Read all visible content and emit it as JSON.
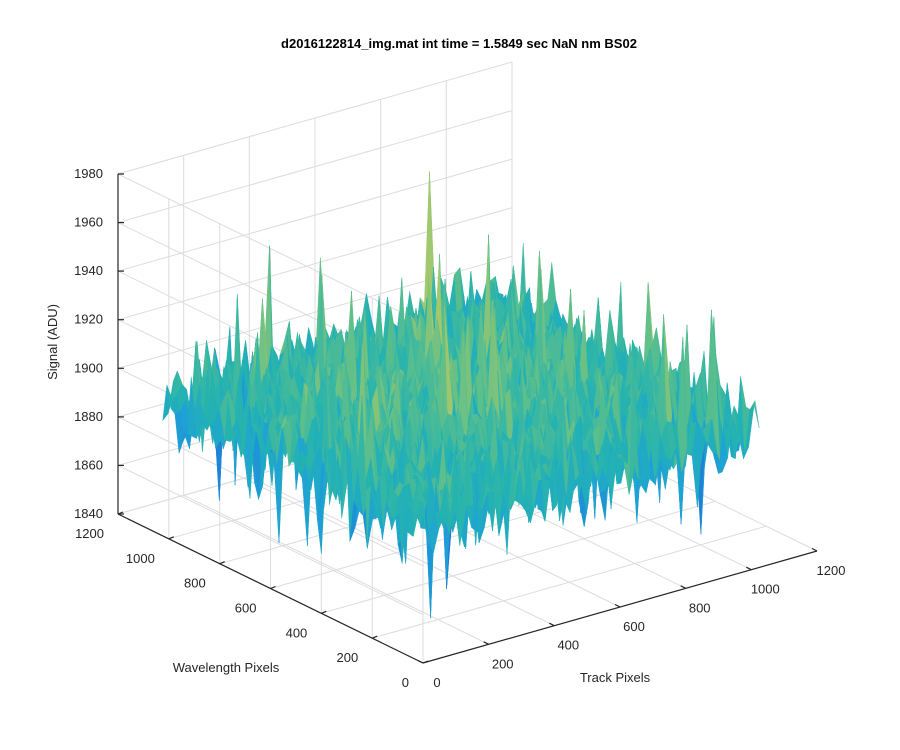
{
  "chart_data": {
    "type": "surface",
    "title": "d2016122814_img.mat int time = 1.5849 sec  NaN nm BS02",
    "xlabel": "Track Pixels",
    "ylabel": "Wavelength Pixels",
    "zlabel": "Signal (ADU)",
    "xlim": [
      0,
      1200
    ],
    "ylim": [
      0,
      1200
    ],
    "zlim": [
      1840,
      1980
    ],
    "xticks": [
      "0",
      "200",
      "400",
      "600",
      "800",
      "1000",
      "1200"
    ],
    "yticks": [
      "0",
      "200",
      "400",
      "600",
      "800",
      "1000",
      "1200"
    ],
    "zticks": [
      "1840",
      "1860",
      "1880",
      "1900",
      "1920",
      "1940",
      "1960",
      "1980"
    ],
    "xtick_values": [
      0,
      200,
      400,
      600,
      800,
      1000,
      1200
    ],
    "ytick_values": [
      0,
      200,
      400,
      600,
      800,
      1000,
      1200
    ],
    "ztick_values": [
      1840,
      1860,
      1880,
      1900,
      1920,
      1940,
      1960,
      1980
    ],
    "data_extent": {
      "x": [
        0,
        1024
      ],
      "y": [
        0,
        1024
      ]
    },
    "signal_mean": 1900,
    "signal_noise_amplitude": 10,
    "signal_peak": 1960,
    "signal_min": 1843,
    "grid": true,
    "colormap": [
      "#1f77d6",
      "#1ea2d6",
      "#24b3b0",
      "#5fbf8a",
      "#a9c96a",
      "#e0cb4a"
    ]
  }
}
